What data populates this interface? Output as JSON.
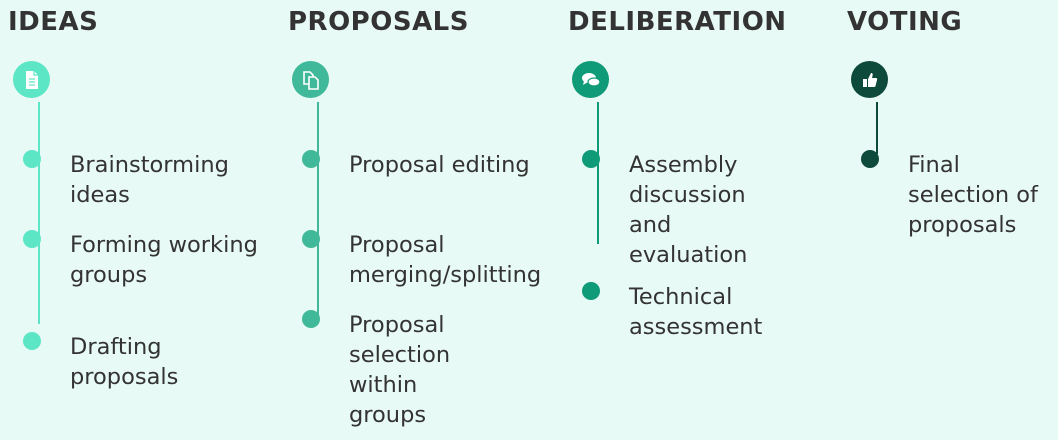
{
  "phases": [
    {
      "title": "IDEAS",
      "color": "#5ce6c6",
      "icon": "document-icon",
      "items": [
        "Brainstorming ideas",
        "Forming working groups",
        "Drafting proposals"
      ]
    },
    {
      "title": "PROPOSALS",
      "color": "#40b89a",
      "icon": "copy-icon",
      "items": [
        "Proposal editing",
        "Proposal merging/splitting",
        "Proposal selection within groups"
      ]
    },
    {
      "title": "DELIBERATION",
      "color": "#0f9a78",
      "icon": "chat-icon",
      "items": [
        "Assembly discussion and evaluation",
        "Technical assessment"
      ]
    },
    {
      "title": "VOTING",
      "color": "#0d4a3c",
      "icon": "thumbs-up-icon",
      "items": [
        "Final selection of proposals"
      ]
    }
  ]
}
